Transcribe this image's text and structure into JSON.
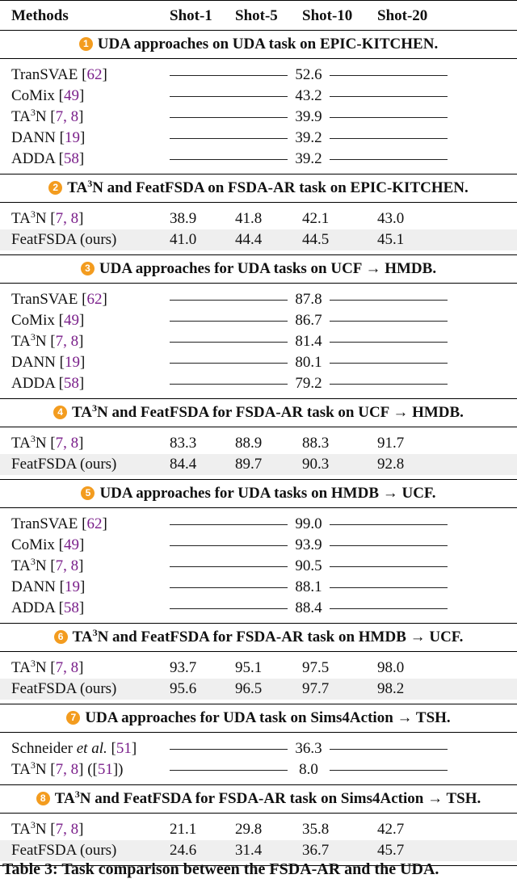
{
  "header": {
    "methods": "Methods",
    "shot1": "Shot-1",
    "shot5": "Shot-5",
    "shot10": "Shot-10",
    "shot20": "Shot-20"
  },
  "sections": [
    {
      "badge": "1",
      "title": "UDA approaches on UDA task on EPIC-KITCHEN.",
      "rows": [
        {
          "method": "TranSVAE",
          "cite": "62",
          "value": "52.6"
        },
        {
          "method": "CoMix",
          "cite": "49",
          "value": "43.2"
        },
        {
          "method": "TA",
          "sup": "3",
          "method_tail": "N",
          "cite": "7, 8",
          "value": "39.9"
        },
        {
          "method": "DANN",
          "cite": "19",
          "value": "39.2"
        },
        {
          "method": "ADDA",
          "cite": "58",
          "value": "39.2"
        }
      ]
    },
    {
      "badge": "2",
      "title_pre": "TA",
      "title_sup": "3",
      "title": "N and FeatFSDA on FSDA-AR task on EPIC-KITCHEN.",
      "rows": [
        {
          "method": "TA",
          "sup": "3",
          "method_tail": "N",
          "cite": "7, 8",
          "shots": [
            "38.9",
            "41.8",
            "42.1",
            "43.0"
          ]
        },
        {
          "method": "FeatFSDA (ours)",
          "shots": [
            "41.0",
            "44.4",
            "44.5",
            "45.1"
          ],
          "shaded": true
        }
      ]
    },
    {
      "badge": "3",
      "title": "UDA approaches for UDA tasks on UCF → HMDB.",
      "rows": [
        {
          "method": "TranSVAE",
          "cite": "62",
          "value": "87.8"
        },
        {
          "method": "CoMix",
          "cite": "49",
          "value": "86.7"
        },
        {
          "method": "TA",
          "sup": "3",
          "method_tail": "N",
          "cite": "7, 8",
          "value": "81.4"
        },
        {
          "method": "DANN",
          "cite": "19",
          "value": "80.1"
        },
        {
          "method": "ADDA",
          "cite": "58",
          "value": "79.2"
        }
      ]
    },
    {
      "badge": "4",
      "title_pre": "TA",
      "title_sup": "3",
      "title": "N and FeatFSDA for FSDA-AR task on UCF → HMDB.",
      "rows": [
        {
          "method": "TA",
          "sup": "3",
          "method_tail": "N",
          "cite": "7, 8",
          "shots": [
            "83.3",
            "88.9",
            "88.3",
            "91.7"
          ]
        },
        {
          "method": "FeatFSDA (ours)",
          "shots": [
            "84.4",
            "89.7",
            "90.3",
            "92.8"
          ],
          "shaded": true
        }
      ]
    },
    {
      "badge": "5",
      "title": "UDA approaches for UDA tasks on HMDB → UCF.",
      "rows": [
        {
          "method": "TranSVAE",
          "cite": "62",
          "value": "99.0"
        },
        {
          "method": "CoMix",
          "cite": "49",
          "value": "93.9"
        },
        {
          "method": "TA",
          "sup": "3",
          "method_tail": "N",
          "cite": "7, 8",
          "value": "90.5"
        },
        {
          "method": "DANN",
          "cite": "19",
          "value": "88.1"
        },
        {
          "method": "ADDA",
          "cite": "58",
          "value": "88.4"
        }
      ]
    },
    {
      "badge": "6",
      "title_pre": "TA",
      "title_sup": "3",
      "title": "N and FeatFSDA for FSDA-AR task on HMDB → UCF.",
      "rows": [
        {
          "method": "TA",
          "sup": "3",
          "method_tail": "N",
          "cite": "7, 8",
          "shots": [
            "93.7",
            "95.1",
            "97.5",
            "98.0"
          ]
        },
        {
          "method": "FeatFSDA (ours)",
          "shots": [
            "95.6",
            "96.5",
            "97.7",
            "98.2"
          ],
          "shaded": true
        }
      ]
    },
    {
      "badge": "7",
      "title": "UDA approaches for UDA task on Sims4Action → TSH.",
      "rows": [
        {
          "method": "Schneider ",
          "italic": "et al.",
          "cite": "51",
          "value": "36.3"
        },
        {
          "method": "TA",
          "sup": "3",
          "method_tail": "N",
          "cite": "7, 8",
          "extra_pre": " ([",
          "extra_cite": "51",
          "extra_post": "])",
          "value": "8.0"
        }
      ]
    },
    {
      "badge": "8",
      "title_pre": "TA",
      "title_sup": "3",
      "title": "N and FeatFSDA for FSDA-AR task on Sims4Action → TSH.",
      "rows": [
        {
          "method": "TA",
          "sup": "3",
          "method_tail": "N",
          "cite": "7, 8",
          "shots": [
            "21.1",
            "29.8",
            "35.8",
            "42.7"
          ]
        },
        {
          "method": "FeatFSDA (ours)",
          "shots": [
            "24.6",
            "31.4",
            "36.7",
            "45.7"
          ],
          "shaded": true
        }
      ]
    }
  ],
  "caption": "Table 3: Task comparison between the FSDA-AR and the UDA.",
  "colors": {
    "badge": "#f39c1f",
    "cite": "#7a1f8a",
    "shade": "#efefef"
  }
}
